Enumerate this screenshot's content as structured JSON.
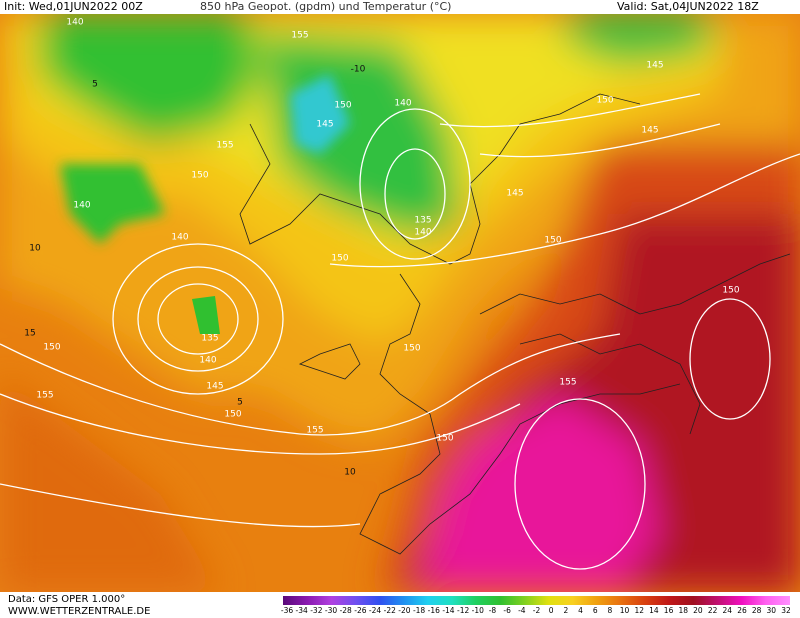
{
  "header": {
    "init": "Init: Wed,01JUN2022 00Z",
    "title": "850 hPa Geopot. (gpdm) und Temperatur (°C)",
    "valid": "Valid: Sat,04JUN2022 18Z"
  },
  "footer": {
    "data": "Data: GFS OPER 1.000°",
    "site": "WWW.WETTERZENTRALE.DE"
  },
  "colorbar": {
    "labels": [
      "-36",
      "-34",
      "-32",
      "-30",
      "-28",
      "-26",
      "-24",
      "-22",
      "-20",
      "-18",
      "-16",
      "-14",
      "-12",
      "-10",
      "-8",
      "-6",
      "-4",
      "-2",
      "0",
      "2",
      "4",
      "6",
      "8",
      "10",
      "12",
      "14",
      "16",
      "18",
      "20",
      "22",
      "24",
      "26",
      "28",
      "30",
      "32"
    ]
  },
  "geopotential_labels": [
    "140",
    "155",
    "145",
    "150",
    "150",
    "140",
    "145",
    "145",
    "155",
    "150",
    "140",
    "145",
    "135",
    "140",
    "140",
    "150",
    "150",
    "150",
    "135",
    "150",
    "150",
    "140",
    "145",
    "155",
    "150",
    "155",
    "155",
    "150"
  ],
  "temperature_labels": [
    "10",
    "15",
    "10",
    "5",
    "-10",
    "5"
  ]
}
